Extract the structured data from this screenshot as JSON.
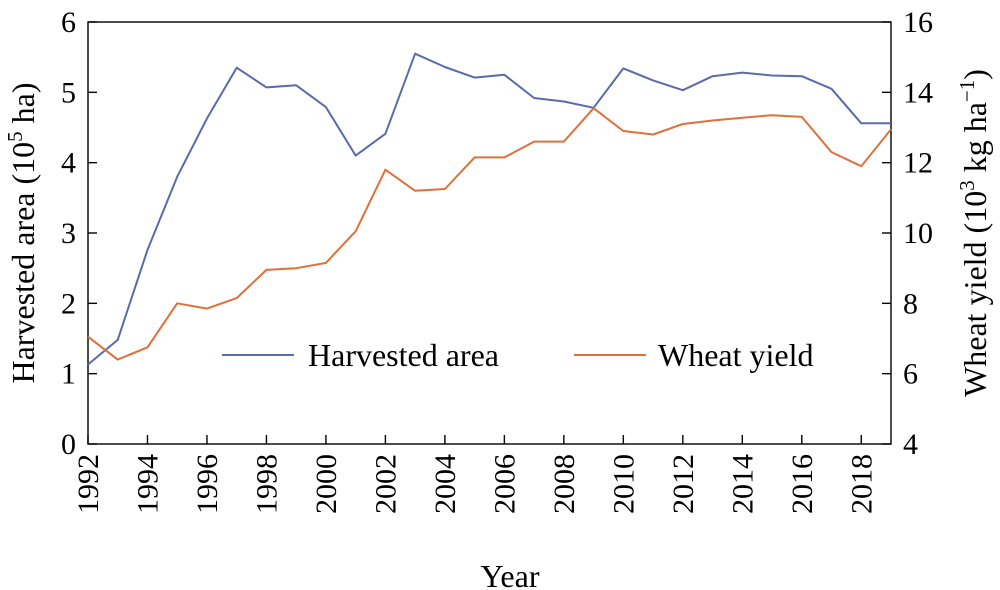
{
  "chart_data": {
    "type": "line",
    "xlabel": "Year",
    "ylabel_left": "Harvested area (10",
    "ylabel_left_sup": "5",
    "ylabel_left_end": " ha)",
    "ylabel_right": "Wheat yield (10",
    "ylabel_right_sup1": "3",
    "ylabel_right_mid": " kg ha",
    "ylabel_right_sup2": "−1",
    "ylabel_right_end": ")",
    "x_ticks": [
      "1992",
      "1994",
      "1996",
      "1998",
      "2000",
      "2002",
      "2004",
      "2006",
      "2008",
      "2010",
      "2012",
      "2014",
      "2016",
      "2018"
    ],
    "y_left_ticks": [
      "0",
      "1",
      "2",
      "3",
      "4",
      "5",
      "6"
    ],
    "y_right_ticks": [
      "4",
      "6",
      "8",
      "10",
      "12",
      "14",
      "16"
    ],
    "xlim": [
      1992,
      2019
    ],
    "ylim_left": [
      0,
      6
    ],
    "ylim_right": [
      4,
      16
    ],
    "legend_position": "center",
    "x": [
      1992,
      1993,
      1994,
      1995,
      1996,
      1997,
      1998,
      1999,
      2000,
      2001,
      2002,
      2003,
      2004,
      2005,
      2006,
      2007,
      2008,
      2009,
      2010,
      2011,
      2012,
      2013,
      2014,
      2015,
      2016,
      2017,
      2018,
      2019
    ],
    "series": [
      {
        "name": "Harvested area",
        "axis": "left",
        "color": "#5a6aaa",
        "values": [
          1.13,
          1.48,
          2.76,
          3.8,
          4.63,
          5.35,
          5.07,
          5.1,
          4.79,
          4.1,
          4.41,
          5.55,
          5.36,
          5.21,
          5.25,
          4.92,
          4.87,
          4.78,
          5.34,
          5.17,
          5.03,
          5.23,
          5.28,
          5.24,
          5.23,
          5.05,
          4.56,
          4.56
        ]
      },
      {
        "name": "Wheat yield",
        "axis": "right",
        "color": "#e0703a",
        "values": [
          7.05,
          6.4,
          6.75,
          8.0,
          7.85,
          8.15,
          8.95,
          9.0,
          9.15,
          10.05,
          11.8,
          11.2,
          11.25,
          12.15,
          12.15,
          12.6,
          12.6,
          13.55,
          12.9,
          12.8,
          13.1,
          13.2,
          13.28,
          13.35,
          13.3,
          12.3,
          11.9,
          12.95
        ]
      }
    ]
  }
}
